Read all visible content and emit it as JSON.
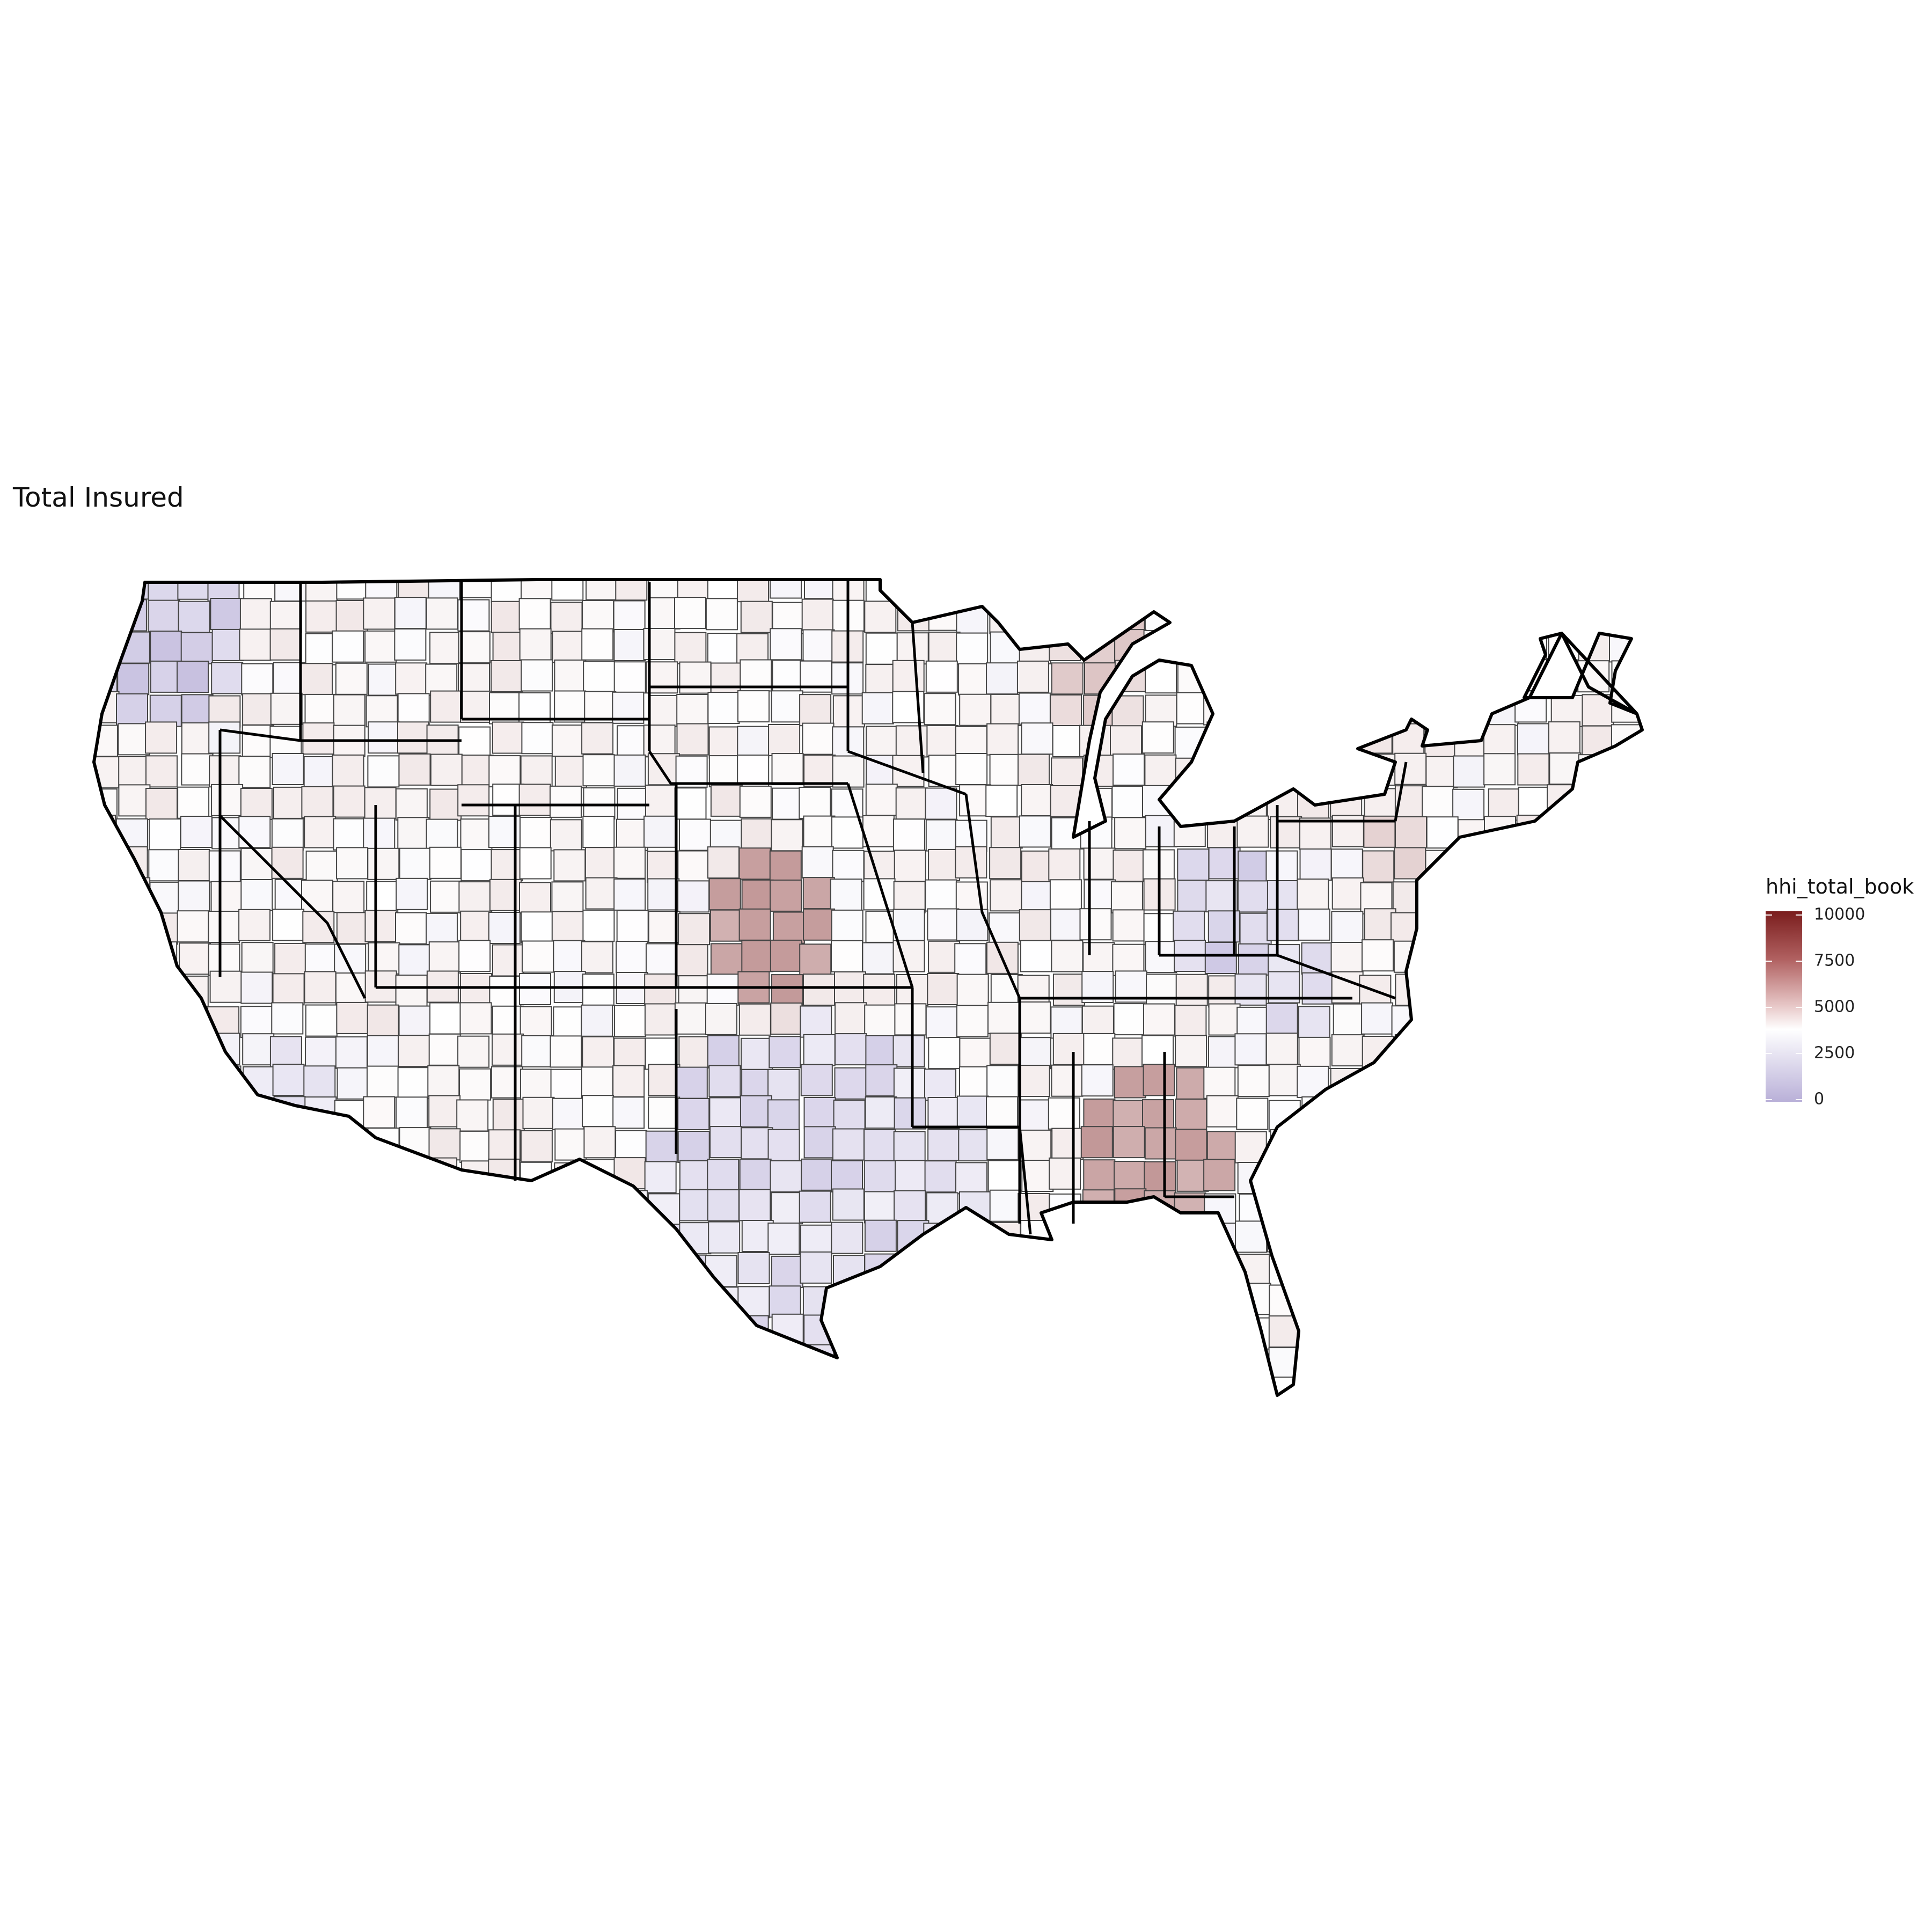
{
  "title": "Total Insured",
  "legend": {
    "title": "hhi_total_book",
    "ticks": [
      "10000",
      "7500",
      "5000",
      "2500",
      "0"
    ],
    "domain": [
      0,
      10000
    ],
    "colors": {
      "low": "#b9b0d8",
      "mid": "#ffffff",
      "high": "#7a1d1d"
    }
  },
  "map": {
    "region": "contiguous-united-states",
    "units": "hospital-referral-regions",
    "state_border_color": "#000000",
    "region_border_color": "#444444",
    "highlights": [
      {
        "area": "Alabama",
        "level": "high"
      },
      {
        "area": "Western Kansas",
        "level": "high"
      },
      {
        "area": "Western Oklahoma",
        "level": "medium-high"
      },
      {
        "area": "Upper Michigan",
        "level": "medium-high"
      },
      {
        "area": "Florida Panhandle",
        "level": "medium-high"
      },
      {
        "area": "Washington",
        "level": "low"
      },
      {
        "area": "Texas",
        "level": "low"
      },
      {
        "area": "Ohio",
        "level": "low"
      }
    ]
  }
}
